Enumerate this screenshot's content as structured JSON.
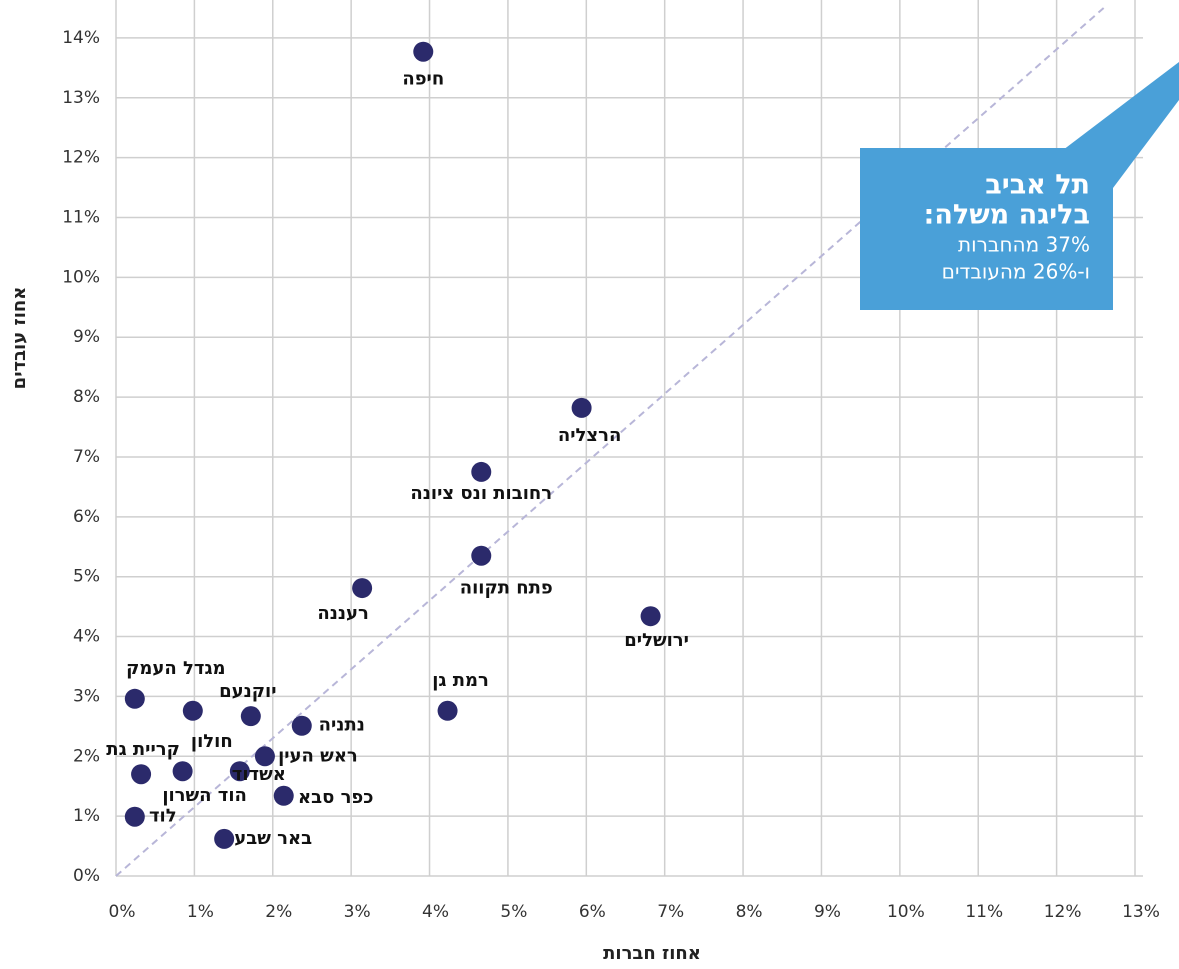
{
  "chart_data": {
    "type": "scatter",
    "x_label": "אחוז חברות",
    "y_label": "אחוז עובדים",
    "xlim": [
      0,
      13
    ],
    "ylim": [
      0,
      14.5
    ],
    "xticks": [
      {
        "value": 0,
        "label": "0%"
      },
      {
        "value": 1,
        "label": "1%"
      },
      {
        "value": 2,
        "label": "2%"
      },
      {
        "value": 3,
        "label": "3%"
      },
      {
        "value": 4,
        "label": "4%"
      },
      {
        "value": 5,
        "label": "5%"
      },
      {
        "value": 6,
        "label": "6%"
      },
      {
        "value": 7,
        "label": "7%"
      },
      {
        "value": 8,
        "label": "8%"
      },
      {
        "value": 9,
        "label": "9%"
      },
      {
        "value": 10,
        "label": "10%"
      },
      {
        "value": 11,
        "label": "11%"
      },
      {
        "value": 12,
        "label": "12%"
      },
      {
        "value": 13,
        "label": "13%"
      }
    ],
    "yticks": [
      {
        "value": 0,
        "label": "0%"
      },
      {
        "value": 1,
        "label": "1%"
      },
      {
        "value": 2,
        "label": "2%"
      },
      {
        "value": 3,
        "label": "3%"
      },
      {
        "value": 4,
        "label": "4%"
      },
      {
        "value": 5,
        "label": "5%"
      },
      {
        "value": 6,
        "label": "6%"
      },
      {
        "value": 7,
        "label": "7%"
      },
      {
        "value": 8,
        "label": "8%"
      },
      {
        "value": 9,
        "label": "9%"
      },
      {
        "value": 10,
        "label": "10%"
      },
      {
        "value": 11,
        "label": "11%"
      },
      {
        "value": 12,
        "label": "12%"
      },
      {
        "value": 13,
        "label": "13%"
      },
      {
        "value": 14,
        "label": "14%"
      }
    ],
    "grid": true,
    "color": "#2b2a6b",
    "labels": [
      "חיפה",
      "הרצליה",
      "רחובות ונס ציונה",
      "פתח תקווה",
      "רעננה",
      "ירושלים",
      "רמת גן",
      "מגדל העמק",
      "חולון",
      "יוקנעם",
      "נתניה",
      "ראש העין",
      "קריית גת",
      "הוד השרון",
      "אשדוד",
      "כפר סבא",
      "לוד",
      "באר שבע"
    ],
    "x": [
      3.92,
      5.94,
      4.66,
      4.66,
      3.14,
      6.82,
      4.23,
      0.24,
      0.98,
      1.72,
      2.37,
      1.9,
      0.32,
      0.85,
      1.58,
      2.14,
      0.24,
      1.38
    ],
    "values": [
      13.77,
      7.82,
      6.75,
      5.35,
      4.81,
      4.34,
      2.76,
      2.96,
      2.76,
      2.67,
      2.51,
      2.0,
      1.7,
      1.75,
      1.75,
      1.34,
      0.99,
      0.62
    ],
    "reference_line": {
      "x": [
        0,
        12.6
      ],
      "y": [
        0,
        14.5
      ],
      "color": "#b8b6d8"
    },
    "callout": {
      "title": "תל אביב",
      "subtitle": "בליגה משלה:",
      "lines": [
        "37% מהחברות",
        "ו-26% מהעובדים"
      ],
      "color": "#4aa0d8"
    }
  }
}
